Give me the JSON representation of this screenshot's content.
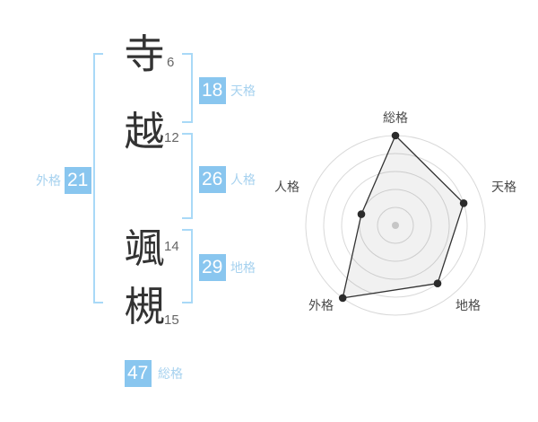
{
  "name": {
    "characters": [
      {
        "char": "寺",
        "strokes": "6"
      },
      {
        "char": "越",
        "strokes": "12"
      },
      {
        "char": "颯",
        "strokes": "14"
      },
      {
        "char": "槻",
        "strokes": "15"
      }
    ]
  },
  "kaku": {
    "tenkaku": {
      "value": "18",
      "label": "天格"
    },
    "jinkaku": {
      "value": "26",
      "label": "人格"
    },
    "chikaku": {
      "value": "29",
      "label": "地格"
    },
    "gaikaku": {
      "value": "21",
      "label": "外格"
    },
    "soukaku": {
      "value": "47",
      "label": "総格"
    }
  },
  "chart_data": {
    "type": "radar",
    "axes": [
      "総格",
      "天格",
      "地格",
      "外格",
      "人格"
    ],
    "values": [
      5,
      4,
      4,
      5,
      2
    ],
    "max": 5,
    "rings": 5,
    "start_angle_deg": 90,
    "direction": "clockwise",
    "grid": "concentric-circles",
    "legend": "none",
    "colors": {
      "ring": "#d9d9d9",
      "polygon_stroke": "#333333",
      "polygon_fill": "rgba(0,0,0,0.055)",
      "vertex": "#2b2b2b",
      "center_dot": "#c6c6c6",
      "label": "#4a4a4a"
    }
  },
  "colors": {
    "badge_bg": "#89c6ef",
    "badge_text": "#ffffff",
    "label_blue": "#a7d2ef",
    "bracket_blue": "#a9d9f7",
    "kanji": "#333333",
    "stroke_count": "#666666",
    "background": "#ffffff"
  }
}
